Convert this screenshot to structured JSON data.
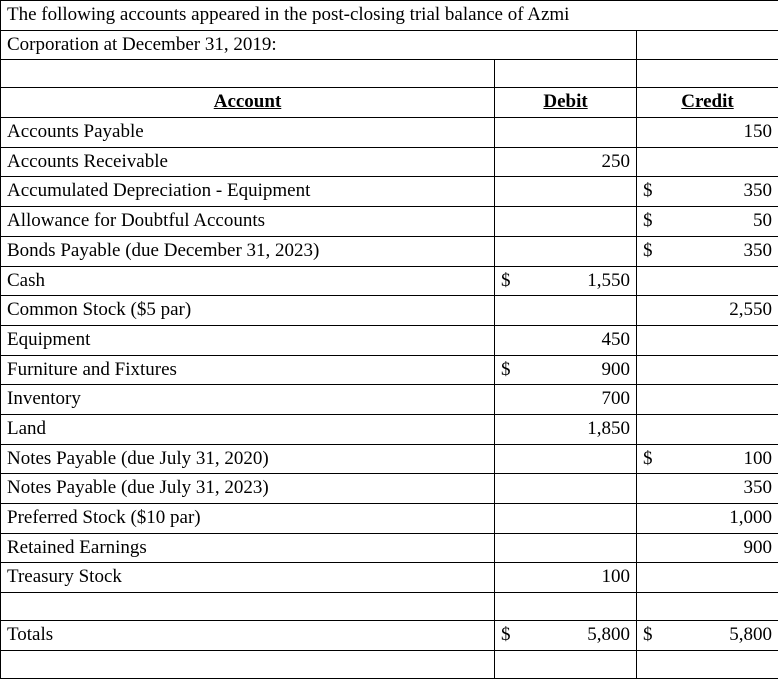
{
  "colors": {
    "background": "#ffffff",
    "text": "#000000",
    "border": "#000000"
  },
  "typography": {
    "font_family": "Times New Roman",
    "font_size_pt": 14
  },
  "intro_line1": "The following accounts appeared in the post-closing trial balance of Azmi",
  "intro_line2": "Corporation at December 31, 2019:",
  "headers": {
    "account": "Account",
    "debit": "Debit",
    "credit": "Credit"
  },
  "rows": [
    {
      "account": "Accounts Payable",
      "debit_sym": "",
      "debit": "",
      "credit_sym": "",
      "credit": "150"
    },
    {
      "account": "Accounts Receivable",
      "debit_sym": "",
      "debit": "250",
      "credit_sym": "",
      "credit": ""
    },
    {
      "account": "Accumulated Depreciation - Equipment",
      "debit_sym": "",
      "debit": "",
      "credit_sym": "$",
      "credit": "350"
    },
    {
      "account": "Allowance for Doubtful Accounts",
      "debit_sym": "",
      "debit": "",
      "credit_sym": "$",
      "credit": "50"
    },
    {
      "account": "Bonds Payable (due December 31, 2023)",
      "debit_sym": "",
      "debit": "",
      "credit_sym": "$",
      "credit": "350"
    },
    {
      "account": "Cash",
      "debit_sym": "$",
      "debit": "1,550",
      "credit_sym": "",
      "credit": ""
    },
    {
      "account": "Common Stock ($5 par)",
      "debit_sym": "",
      "debit": "",
      "credit_sym": "",
      "credit": "2,550"
    },
    {
      "account": "Equipment",
      "debit_sym": "",
      "debit": "450",
      "credit_sym": "",
      "credit": ""
    },
    {
      "account": "Furniture and Fixtures",
      "debit_sym": "$",
      "debit": "900",
      "credit_sym": "",
      "credit": ""
    },
    {
      "account": "Inventory",
      "debit_sym": "",
      "debit": "700",
      "credit_sym": "",
      "credit": ""
    },
    {
      "account": "Land",
      "debit_sym": "",
      "debit": "1,850",
      "credit_sym": "",
      "credit": ""
    },
    {
      "account": "Notes Payable (due July 31, 2020)",
      "debit_sym": "",
      "debit": "",
      "credit_sym": "$",
      "credit": "100"
    },
    {
      "account": "Notes Payable (due July 31, 2023)",
      "debit_sym": "",
      "debit": "",
      "credit_sym": "",
      "credit": "350"
    },
    {
      "account": "Preferred Stock ($10 par)",
      "debit_sym": "",
      "debit": "",
      "credit_sym": "",
      "credit": "1,000"
    },
    {
      "account": "Retained Earnings",
      "debit_sym": "",
      "debit": "",
      "credit_sym": "",
      "credit": "900"
    },
    {
      "account": "Treasury Stock",
      "debit_sym": "",
      "debit": "100",
      "credit_sym": "",
      "credit": ""
    }
  ],
  "totals": {
    "label": "Totals",
    "debit_sym": "$",
    "debit": "5,800",
    "credit_sym": "$",
    "credit": "5,800"
  }
}
